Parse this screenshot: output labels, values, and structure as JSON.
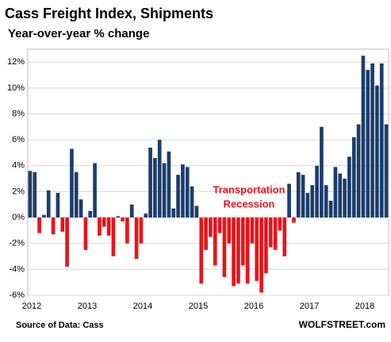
{
  "chart_data": {
    "type": "bar",
    "title": "Cass Freight Index,  Shipments",
    "subtitle": "Year-over-year % change",
    "annotation": [
      "Transportation",
      "Recession"
    ],
    "source": "Source of Data: Cass",
    "credit": "WOLFSTREET.com",
    "categories": [
      "2012",
      null,
      null,
      null,
      null,
      null,
      null,
      null,
      null,
      null,
      null,
      null,
      "2013",
      null,
      null,
      null,
      null,
      null,
      null,
      null,
      null,
      null,
      null,
      null,
      "2014",
      null,
      null,
      null,
      null,
      null,
      null,
      null,
      null,
      null,
      null,
      null,
      "2015",
      null,
      null,
      null,
      null,
      null,
      null,
      null,
      null,
      null,
      null,
      null,
      "2016",
      null,
      null,
      null,
      null,
      null,
      null,
      null,
      null,
      null,
      null,
      null,
      "2017",
      null,
      null,
      null,
      null,
      null,
      null,
      null,
      null,
      null,
      null,
      null,
      "2018",
      null,
      null,
      null,
      null,
      null
    ],
    "values": [
      3.6,
      3.5,
      -1.2,
      0.2,
      2.1,
      -1.3,
      1.9,
      -1.1,
      -3.8,
      5.3,
      3.5,
      1.4,
      -2.5,
      0.5,
      4.2,
      -1.4,
      -0.7,
      -1.4,
      -3.0,
      0.1,
      -0.3,
      -2.0,
      1.0,
      -3.2,
      -2.0,
      0.3,
      5.4,
      4.6,
      6.0,
      4.2,
      5.1,
      0.7,
      3.3,
      4.1,
      3.9,
      2.4,
      0.9,
      -5.1,
      -2.5,
      -1.5,
      -3.7,
      -1.2,
      -4.6,
      -2.0,
      -5.3,
      -5.1,
      -3.7,
      -5.1,
      -2.0,
      -4.9,
      -5.8,
      -4.3,
      -2.3,
      -2.5,
      -1.0,
      -3.0,
      2.6,
      -0.4,
      3.5,
      3.3,
      1.9,
      2.5,
      4.0,
      7.0,
      2.5,
      1.3,
      3.9,
      3.4,
      3.0,
      4.7,
      6.2,
      7.2,
      12.5,
      11.4,
      11.9,
      10.2,
      11.9,
      7.2
    ],
    "positive_color": "#1c3d6b",
    "negative_color": "#e8141a",
    "ylim": [
      -6,
      13
    ],
    "yticks": [
      {
        "value": -6,
        "label": "-6%"
      },
      {
        "value": -4,
        "label": "-4%"
      },
      {
        "value": -2,
        "label": "-2%"
      },
      {
        "value": 0,
        "label": "0%"
      },
      {
        "value": 2,
        "label": "2%"
      },
      {
        "value": 4,
        "label": "4%"
      },
      {
        "value": 6,
        "label": "6%"
      },
      {
        "value": 8,
        "label": "8%"
      },
      {
        "value": 10,
        "label": "10%"
      },
      {
        "value": 12,
        "label": "12%"
      }
    ],
    "grid": true
  }
}
